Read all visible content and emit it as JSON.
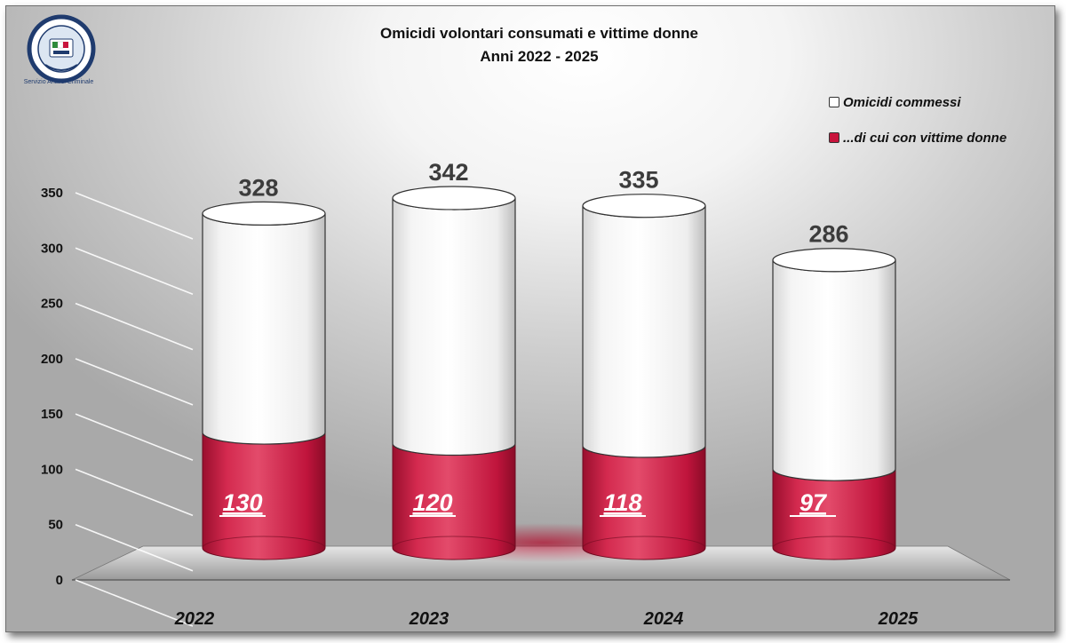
{
  "logo_text": "Servizio Analisi Criminale",
  "chart_data": {
    "type": "bar",
    "title": "Omicidi volontari consumati e vittime donne",
    "subtitle": "Anni 2022 - 2025",
    "categories": [
      "2022",
      "2023",
      "2024",
      "2025"
    ],
    "series": [
      {
        "name": "Omicidi commessi",
        "values": [
          328,
          342,
          335,
          286
        ],
        "color": "#ffffff"
      },
      {
        "name": "...di cui con vittime donne",
        "values": [
          130,
          120,
          118,
          97
        ],
        "color": "#c8143c"
      }
    ],
    "ylim": [
      0,
      350
    ],
    "yticks": [
      "0",
      "50",
      "100",
      "150",
      "200",
      "250",
      "300",
      "350"
    ],
    "grid": true,
    "legend": "top-right",
    "style": "3d-cylinder"
  }
}
